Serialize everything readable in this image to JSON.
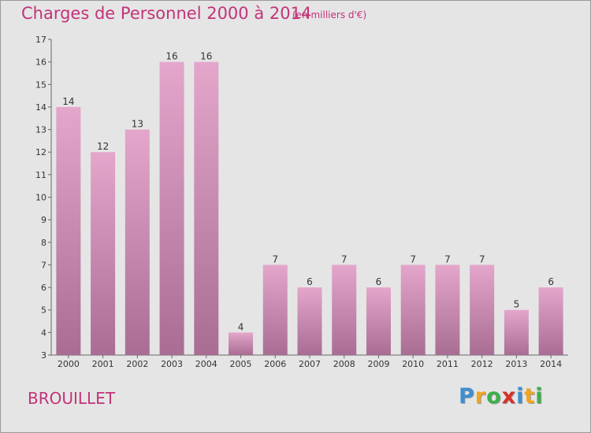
{
  "header": {
    "title": "Charges de Personnel 2000 à 2014",
    "subtitle": "(en milliers d'€)"
  },
  "footer": {
    "commune": "BROUILLET",
    "logo_letters": [
      "P",
      "r",
      "o",
      "x",
      "i",
      "t",
      "i"
    ]
  },
  "colors": {
    "accent": "#c2337a",
    "bar_top": "#e4a6cb",
    "bar_bottom": "#a96d93",
    "logo": [
      "#3d8fd1",
      "#f2a41e",
      "#3db04a",
      "#d9302a",
      "#3d8fd1",
      "#f2a41e",
      "#3db04a"
    ]
  },
  "chart_data": {
    "type": "bar",
    "title": "Charges de Personnel 2000 à 2014",
    "subtitle": "(en milliers d'€)",
    "categories": [
      "2000",
      "2001",
      "2002",
      "2003",
      "2004",
      "2005",
      "2006",
      "2007",
      "2008",
      "2009",
      "2010",
      "2011",
      "2012",
      "2013",
      "2014"
    ],
    "values": [
      14,
      12,
      13,
      16,
      16,
      4,
      7,
      6,
      7,
      6,
      7,
      7,
      7,
      5,
      6
    ],
    "ylim": [
      3,
      17
    ],
    "yticks": [
      3,
      4,
      5,
      6,
      7,
      8,
      9,
      10,
      11,
      12,
      13,
      14,
      15,
      16,
      17
    ],
    "grid": false,
    "xlabel": "",
    "ylabel": ""
  }
}
